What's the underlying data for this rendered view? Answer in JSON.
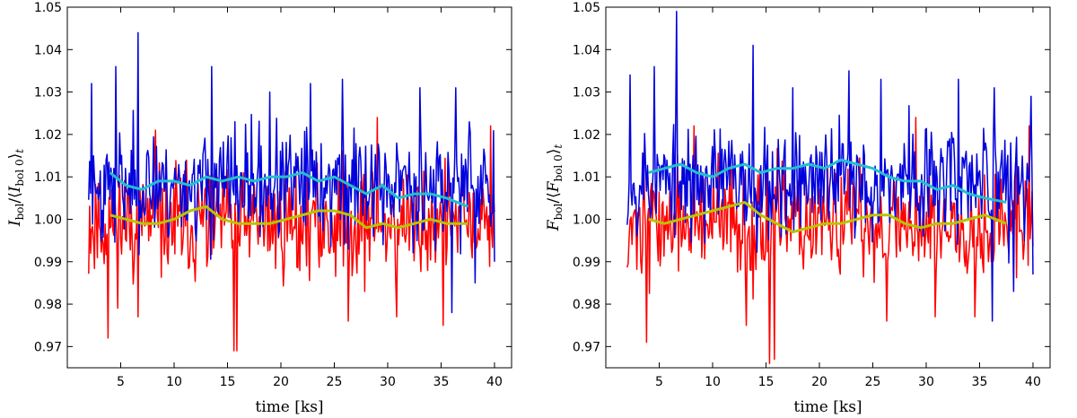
{
  "chart_data": [
    {
      "type": "line",
      "xlabel": "time [ks]",
      "ylabel": "I_bol / ⟨I_bol 0⟩_t",
      "ylabel_parts": {
        "sym": "I",
        "num_sub": "bol",
        "den_sub": "bol 0",
        "outer_sub": "t"
      },
      "xlim": [
        0,
        41.6
      ],
      "ylim": [
        0.965,
        1.05
      ],
      "xticks": [
        5,
        10,
        15,
        20,
        25,
        30,
        35,
        40
      ],
      "xtick_labels": [
        "5",
        "10",
        "15",
        "20",
        "25",
        "30",
        "35",
        "40"
      ],
      "yticks": [
        0.97,
        0.98,
        0.99,
        1.0,
        1.01,
        1.02,
        1.03,
        1.04,
        1.05
      ],
      "ytick_labels": [
        "0.97",
        "0.98",
        "0.99",
        "1.00",
        "1.01",
        "1.02",
        "1.03",
        "1.04",
        "1.05"
      ],
      "series": [
        {
          "name": "red",
          "color": "#ff0000",
          "width": 1.5,
          "x_start": 2,
          "x_end": 40,
          "mean": 0.999,
          "noise": 0.011,
          "n": 420,
          "seed": 11,
          "spikes": [
            [
              3.8,
              0.972
            ],
            [
              6.6,
              0.977
            ],
            [
              15.6,
              0.969
            ],
            [
              15.9,
              0.969
            ],
            [
              26.3,
              0.976
            ],
            [
              30.8,
              0.977
            ],
            [
              35.2,
              0.975
            ],
            [
              8.3,
              1.021
            ],
            [
              29.0,
              1.024
            ],
            [
              39.6,
              1.022
            ]
          ]
        },
        {
          "name": "blue",
          "color": "#0000dd",
          "width": 1.5,
          "x_start": 2,
          "x_end": 40,
          "mean": 1.008,
          "noise": 0.011,
          "n": 420,
          "seed": 23,
          "spikes": [
            [
              2.3,
              1.032
            ],
            [
              4.5,
              1.036
            ],
            [
              6.6,
              1.044
            ],
            [
              13.5,
              1.036
            ],
            [
              19.0,
              1.03
            ],
            [
              22.8,
              1.032
            ],
            [
              25.8,
              1.033
            ],
            [
              33.0,
              1.031
            ],
            [
              36.4,
              1.031
            ],
            [
              40.0,
              1.025
            ],
            [
              36.0,
              0.978
            ],
            [
              38.2,
              0.985
            ],
            [
              40.0,
              0.99
            ]
          ]
        },
        {
          "name": "cyan",
          "color": "#22c0cc",
          "width": 3,
          "x": [
            4.0,
            5.5,
            7.0,
            8.5,
            10.0,
            11.5,
            13.0,
            14.5,
            16.0,
            17.5,
            19.0,
            20.5,
            22.0,
            23.5,
            25.0,
            26.5,
            28.0,
            29.5,
            31.0,
            32.5,
            34.0,
            35.5,
            37.5
          ],
          "y": [
            1.011,
            1.008,
            1.007,
            1.009,
            1.009,
            1.008,
            1.01,
            1.009,
            1.01,
            1.009,
            1.01,
            1.01,
            1.011,
            1.009,
            1.01,
            1.008,
            1.006,
            1.008,
            1.005,
            1.006,
            1.006,
            1.005,
            1.003
          ]
        },
        {
          "name": "yellow",
          "color": "#b8c400",
          "width": 3,
          "x": [
            4.0,
            5.5,
            7.0,
            8.5,
            10.0,
            11.5,
            13.0,
            14.5,
            16.0,
            17.5,
            19.0,
            20.5,
            22.0,
            23.5,
            25.0,
            26.5,
            28.0,
            29.5,
            31.0,
            32.5,
            34.0,
            35.5,
            37.5
          ],
          "y": [
            1.001,
            1.0,
            0.999,
            0.999,
            1.0,
            1.002,
            1.003,
            1.0,
            0.999,
            0.999,
            0.999,
            1.0,
            1.001,
            1.002,
            1.002,
            1.001,
            0.998,
            0.999,
            0.998,
            0.999,
            1.0,
            0.999,
            0.999
          ]
        }
      ]
    },
    {
      "type": "line",
      "xlabel": "time [ks]",
      "ylabel": "F_bol / ⟨F_bol 0⟩_t",
      "ylabel_parts": {
        "sym": "F",
        "num_sub": "bol",
        "den_sub": "bol 0",
        "outer_sub": "t"
      },
      "xlim": [
        0,
        41.6
      ],
      "ylim": [
        0.965,
        1.05
      ],
      "xticks": [
        5,
        10,
        15,
        20,
        25,
        30,
        35,
        40
      ],
      "xtick_labels": [
        "5",
        "10",
        "15",
        "20",
        "25",
        "30",
        "35",
        "40"
      ],
      "yticks": [
        0.97,
        0.98,
        0.99,
        1.0,
        1.01,
        1.02,
        1.03,
        1.04,
        1.05
      ],
      "ytick_labels": [
        "0.97",
        "0.98",
        "0.99",
        "1.00",
        "1.01",
        "1.02",
        "1.03",
        "1.04",
        "1.05"
      ],
      "series": [
        {
          "name": "red",
          "color": "#ff0000",
          "width": 1.5,
          "x_start": 2,
          "x_end": 40,
          "mean": 0.999,
          "noise": 0.011,
          "n": 420,
          "seed": 37,
          "spikes": [
            [
              3.8,
              0.971
            ],
            [
              15.3,
              0.966
            ],
            [
              15.8,
              0.967
            ],
            [
              13.2,
              0.975
            ],
            [
              26.3,
              0.976
            ],
            [
              30.8,
              0.977
            ],
            [
              34.6,
              0.977
            ],
            [
              8.3,
              1.022
            ],
            [
              29.0,
              1.024
            ],
            [
              39.6,
              1.022
            ]
          ]
        },
        {
          "name": "blue",
          "color": "#0000dd",
          "width": 1.5,
          "x_start": 2,
          "x_end": 40,
          "mean": 1.009,
          "noise": 0.011,
          "n": 420,
          "seed": 53,
          "spikes": [
            [
              2.3,
              1.034
            ],
            [
              4.5,
              1.036
            ],
            [
              6.6,
              1.049
            ],
            [
              13.8,
              1.041
            ],
            [
              17.5,
              1.031
            ],
            [
              22.8,
              1.035
            ],
            [
              25.8,
              1.033
            ],
            [
              33.0,
              1.033
            ],
            [
              36.4,
              1.031
            ],
            [
              39.8,
              1.029
            ],
            [
              36.2,
              0.976
            ],
            [
              38.2,
              0.983
            ],
            [
              40.0,
              0.987
            ]
          ]
        },
        {
          "name": "cyan",
          "color": "#22c0cc",
          "width": 3,
          "x": [
            4.0,
            5.5,
            7.0,
            8.5,
            10.0,
            11.5,
            13.0,
            14.5,
            16.0,
            17.5,
            19.0,
            20.5,
            22.0,
            23.5,
            25.0,
            26.5,
            28.0,
            29.5,
            31.0,
            32.5,
            34.0,
            35.5,
            37.5
          ],
          "y": [
            1.011,
            1.012,
            1.013,
            1.011,
            1.01,
            1.012,
            1.013,
            1.011,
            1.012,
            1.012,
            1.013,
            1.012,
            1.014,
            1.013,
            1.012,
            1.01,
            1.009,
            1.009,
            1.007,
            1.008,
            1.006,
            1.005,
            1.004
          ]
        },
        {
          "name": "yellow",
          "color": "#b8c400",
          "width": 3,
          "x": [
            4.0,
            5.5,
            7.0,
            8.5,
            10.0,
            11.5,
            13.0,
            14.5,
            16.0,
            17.5,
            19.0,
            20.5,
            22.0,
            23.5,
            25.0,
            26.5,
            28.0,
            29.5,
            31.0,
            32.5,
            34.0,
            35.5,
            37.5
          ],
          "y": [
            1.0,
            0.999,
            1.0,
            1.001,
            1.002,
            1.003,
            1.004,
            1.001,
            0.999,
            0.997,
            0.998,
            0.999,
            0.999,
            1.0,
            1.001,
            1.001,
            0.999,
            0.998,
            0.999,
            0.999,
            1.0,
            1.001,
            0.999
          ]
        }
      ]
    }
  ]
}
